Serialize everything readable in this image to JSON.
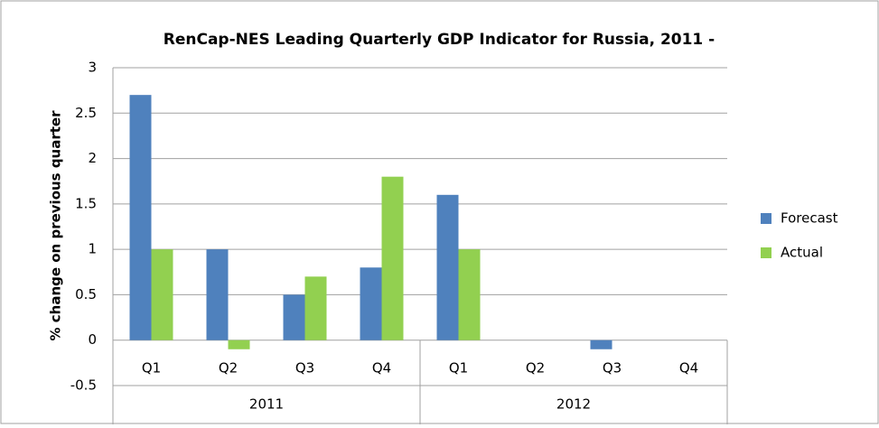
{
  "chart_data": {
    "type": "bar",
    "title": "RenCap-NES Leading Quarterly GDP Indicator for Russia, 2011 -",
    "y_label": "% change on previous quarter",
    "categories": [
      "Q1",
      "Q2",
      "Q3",
      "Q4",
      "Q1",
      "Q2",
      "Q3",
      "Q4"
    ],
    "groups": [
      "2011",
      "2012"
    ],
    "series": [
      {
        "name": "Forecast",
        "color": "#4f81bd",
        "values": [
          2.7,
          1,
          0.5,
          0.8,
          1.6,
          null,
          -0.1,
          null
        ]
      },
      {
        "name": "Actual",
        "color": "#92d050",
        "values": [
          1,
          -0.1,
          0.7,
          1.8,
          1,
          null,
          null,
          null
        ]
      }
    ],
    "ylim": [
      -0.5,
      3
    ],
    "yticks": [
      -0.5,
      0,
      0.5,
      1,
      1.5,
      2,
      2.5,
      3
    ],
    "grid": true,
    "legend": "right"
  }
}
